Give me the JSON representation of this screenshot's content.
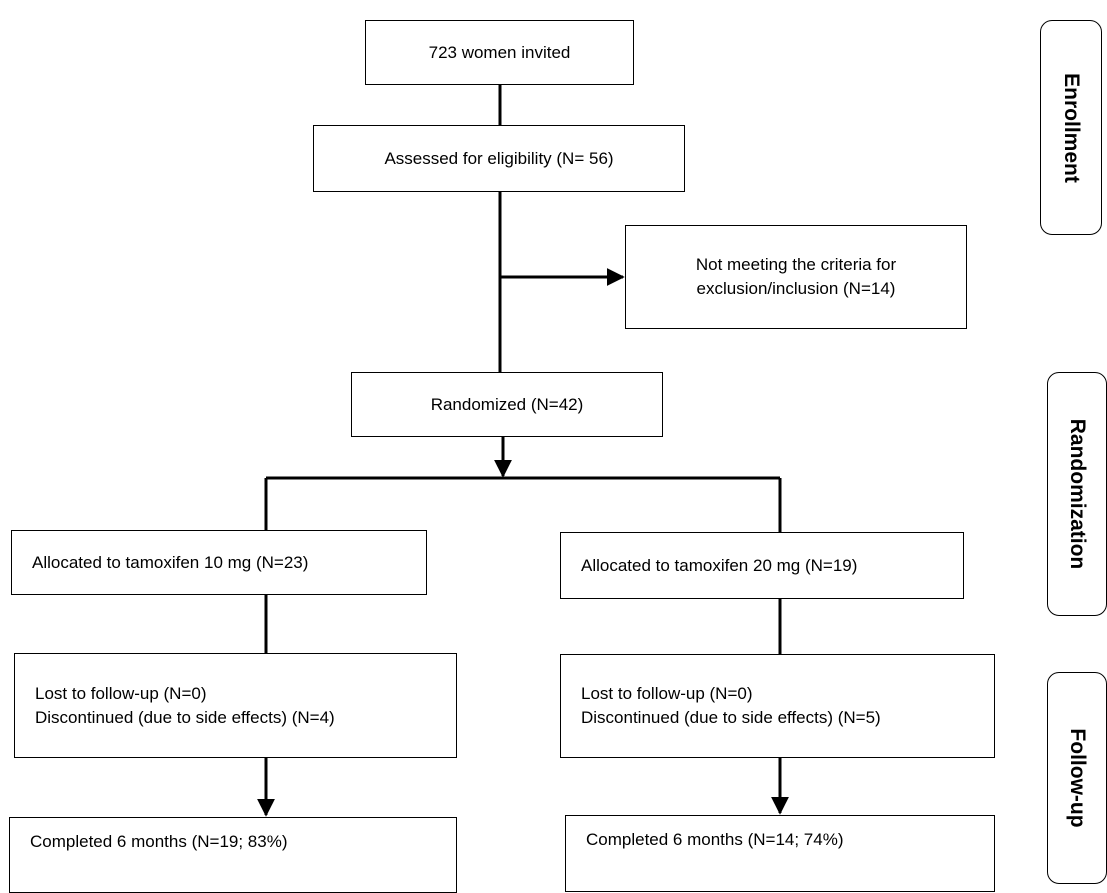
{
  "boxes": {
    "invited": "723 women invited",
    "assessed": "Assessed for eligibility (N= 56)",
    "excluded": {
      "line1": "Not meeting the criteria for",
      "line2": "exclusion/inclusion  (N=14)"
    },
    "randomized": "Randomized (N=42)",
    "allocated_10": "Allocated to tamoxifen 10 mg (N=23)",
    "allocated_20": "Allocated to tamoxifen 20 mg (N=19)",
    "followup_10": {
      "line1": "Lost to follow-up (N=0)",
      "line2": "Discontinued (due to side effects) (N=4)"
    },
    "followup_20": {
      "line1": "Lost to follow-up (N=0)",
      "line2": "Discontinued (due to side effects) (N=5)"
    },
    "completed_10": "Completed 6 months  (N=19; 83%)",
    "completed_20": "Completed 6 months  (N=14; 74%)"
  },
  "stages": {
    "enrollment": "Enrollment",
    "randomization": "Randomization",
    "follow_up": "Follow-up"
  }
}
